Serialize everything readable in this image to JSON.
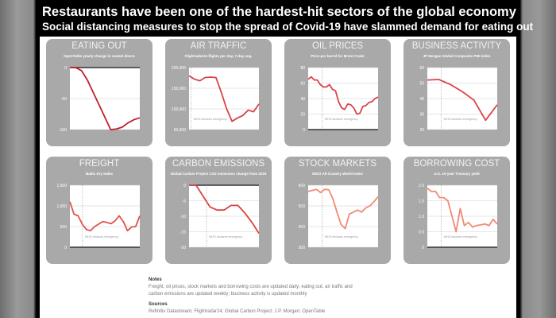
{
  "header": {
    "title": "Restaurants have been one of the hardest-hit sectors of the global economy",
    "subtitle": "Social distancing measures to stop the spread of Covid-19 have slammed demand for eating out"
  },
  "annotation": "WHO declares emergency",
  "chart_data": [
    {
      "type": "line",
      "title": "EATING OUT",
      "subtitle": "OpenTable yearly change in seated diners",
      "ylim": [
        -100,
        0
      ],
      "ticks": [
        "0",
        "-50",
        "-100"
      ],
      "tickvals": [
        0,
        -50,
        -100
      ],
      "emergency": null,
      "color": "#c0202c",
      "values": [
        0,
        0,
        -5,
        -20,
        -40,
        -60,
        -80,
        -100,
        -99,
        -96,
        -89,
        -84,
        -81
      ]
    },
    {
      "type": "line",
      "title": "AIR TRAFFIC",
      "subtitle": "Flightradar24 flights per day, 7-day avg.",
      "ylim": [
        50000,
        200000
      ],
      "ticks": [
        "200,000",
        "150,000",
        "100,000",
        "50,000"
      ],
      "tickvals": [
        200000,
        150000,
        100000,
        50000
      ],
      "emergency": 0.03,
      "color": "#d8434a",
      "values": [
        180000,
        172000,
        168000,
        176000,
        177000,
        176000,
        140000,
        100000,
        70000,
        78000,
        84000,
        97000,
        93000,
        112000
      ]
    },
    {
      "type": "line",
      "title": "OIL PRICES",
      "subtitle": "Price per barrel for Brent Crude",
      "ylim": [
        0,
        80
      ],
      "ticks": [
        "80",
        "60",
        "40",
        "20",
        "0"
      ],
      "tickvals": [
        80,
        60,
        40,
        20,
        0
      ],
      "emergency": 0.2,
      "color": "#d9444a",
      "values": [
        65,
        68,
        64,
        64,
        58,
        55,
        55,
        58,
        52,
        50,
        36,
        28,
        26,
        33,
        32,
        28,
        20,
        21,
        30,
        31,
        35,
        36,
        40,
        42
      ]
    },
    {
      "type": "line",
      "title": "BUSINESS ACTIVITY",
      "subtitle": "JP Morgan Global Composite PMI index",
      "ylim": [
        20,
        60
      ],
      "ticks": [
        "60",
        "50",
        "40",
        "30",
        "20"
      ],
      "tickvals": [
        60,
        50,
        40,
        30,
        20
      ],
      "emergency": 0.2,
      "color": "#d9444a",
      "values": [
        52,
        52.3,
        49,
        44.5,
        39,
        26,
        36
      ]
    },
    {
      "type": "line",
      "title": "FREIGHT",
      "subtitle": "Baltic Dry Index",
      "ylim": [
        0,
        1500
      ],
      "ticks": [
        "1,500",
        "1,000",
        "500",
        "0"
      ],
      "tickvals": [
        1500,
        1000,
        500,
        0
      ],
      "emergency": 0.18,
      "color": "#e0524d",
      "values": [
        1100,
        800,
        760,
        560,
        430,
        400,
        500,
        560,
        620,
        600,
        570,
        640,
        760,
        620,
        400,
        490,
        500,
        760
      ]
    },
    {
      "type": "line",
      "title": "CARBON EMISSIONS",
      "subtitle": "Global Carbon Project CO2 emissions change from 2019",
      "ylim": [
        -20,
        0
      ],
      "ticks": [
        "0",
        "-5",
        "-10",
        "-15",
        "-20"
      ],
      "tickvals": [
        0,
        -5,
        -10,
        -15,
        -20
      ],
      "emergency": 0.25,
      "color": "#d84545",
      "values": [
        0,
        0,
        -3.5,
        -7,
        -8,
        -8,
        -6.5,
        -6.5,
        -9,
        -12,
        -15.5
      ]
    },
    {
      "type": "line",
      "title": "STOCK MARKETS",
      "subtitle": "MSCI All-Country World Index",
      "ylim": [
        300,
        600
      ],
      "ticks": [
        "600",
        "500",
        "400",
        "300"
      ],
      "tickvals": [
        600,
        500,
        400,
        300
      ],
      "emergency": 0.2,
      "color": "#f08a75",
      "values": [
        570,
        575,
        580,
        565,
        580,
        578,
        535,
        470,
        410,
        390,
        460,
        470,
        480,
        470,
        490,
        500,
        520,
        545
      ]
    },
    {
      "type": "line",
      "title": "BORROWING COST",
      "subtitle": "U.S. 10-year Treasury yield",
      "ylim": [
        0,
        2
      ],
      "ticks": [
        "2.0",
        "1.5",
        "1.0",
        "0.5",
        "0"
      ],
      "tickvals": [
        2,
        1.5,
        1,
        0.5,
        0
      ],
      "emergency": 0.2,
      "color": "#f08a75",
      "values": [
        1.9,
        1.8,
        1.8,
        1.6,
        1.6,
        1.5,
        1.0,
        0.5,
        1.25,
        0.7,
        0.8,
        0.65,
        0.7,
        0.72,
        0.75,
        0.7,
        0.9,
        0.75
      ]
    }
  ],
  "notes": {
    "heading": "Notes",
    "line1": "Freight, oil prices, stock markets and borrowing costs are updated daily; eating out, air traffic and",
    "line2": "carbon emissions are updated weekly; business activity is updated monthly",
    "sources_heading": "Sources",
    "sources": "Refinitiv Datastream; Flightradar24; Global Carbon Project; J.P. Morgan; OpenTable"
  }
}
